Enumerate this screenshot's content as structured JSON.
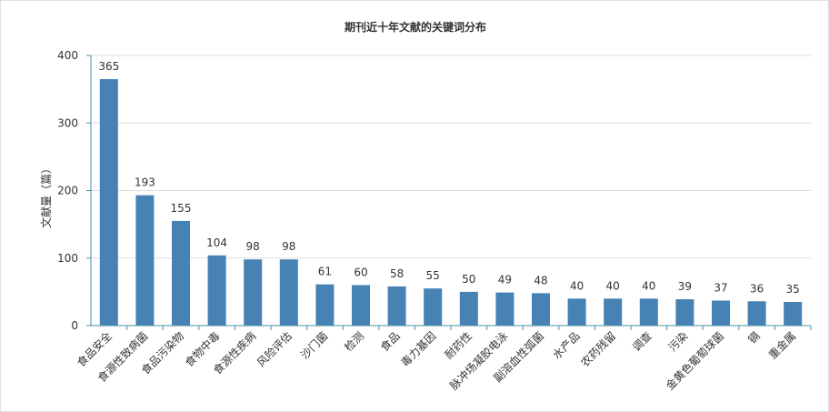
{
  "chart_data": {
    "type": "bar",
    "title": "期刊近十年文献的关键词分布",
    "xlabel": "",
    "ylabel": "文献量（篇）",
    "ylim": [
      0,
      400
    ],
    "yticks": [
      "0",
      "100",
      "200",
      "300",
      "400"
    ],
    "categories": [
      "食品安全",
      "食源性致病菌",
      "食品污染物",
      "食物中毒",
      "食源性疾病",
      "风险评估",
      "沙门菌",
      "检测",
      "食品",
      "毒力基因",
      "耐药性",
      "脉冲场凝胶电泳",
      "副溶血性弧菌",
      "水产品",
      "农药残留",
      "调查",
      "污染",
      "金黄色葡萄球菌",
      "镉",
      "重金属"
    ],
    "values": [
      365,
      193,
      155,
      104,
      98,
      98,
      61,
      60,
      58,
      55,
      50,
      49,
      48,
      40,
      40,
      40,
      39,
      37,
      36,
      35
    ],
    "colors": {
      "bar": "#4682b4",
      "axis": "#4a8fa8",
      "grid": "#dddddd",
      "text": "#333333"
    },
    "grid": true
  }
}
